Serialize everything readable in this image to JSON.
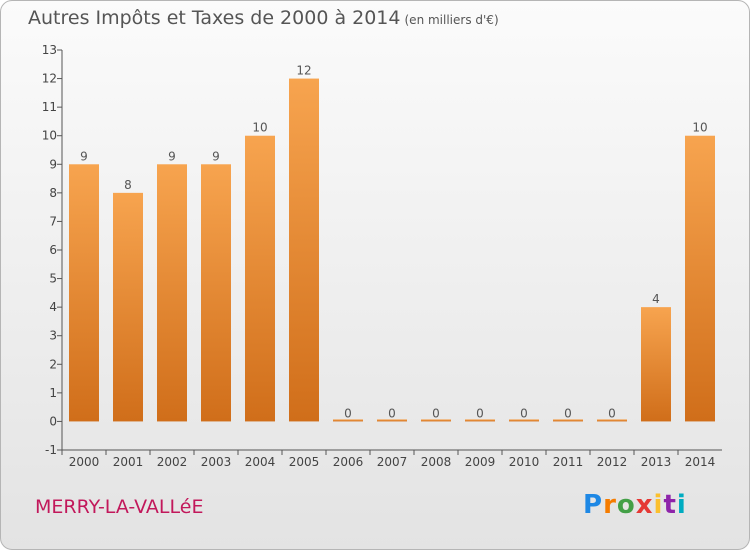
{
  "title": "Autres Impôts et Taxes de 2000 à 2014",
  "unit": "(en milliers d'€)",
  "commune": "MERRY-LA-VALLéE",
  "logo": "Proxiti",
  "colors": {
    "bar_top": "#f7a44f",
    "bar_bottom": "#d06e1a",
    "axis": "#555555",
    "commune": "#c2185b"
  },
  "chart_data": {
    "type": "bar",
    "categories": [
      "2000",
      "2001",
      "2002",
      "2003",
      "2004",
      "2005",
      "2006",
      "2007",
      "2008",
      "2009",
      "2010",
      "2011",
      "2012",
      "2013",
      "2014"
    ],
    "values": [
      9,
      8,
      9,
      9,
      10,
      12,
      0,
      0,
      0,
      0,
      0,
      0,
      0,
      4,
      10
    ],
    "ylim": [
      -1,
      13
    ],
    "yticks": [
      -1,
      0,
      1,
      2,
      3,
      4,
      5,
      6,
      7,
      8,
      9,
      10,
      11,
      12,
      13
    ],
    "grid": false,
    "legend": "none"
  }
}
